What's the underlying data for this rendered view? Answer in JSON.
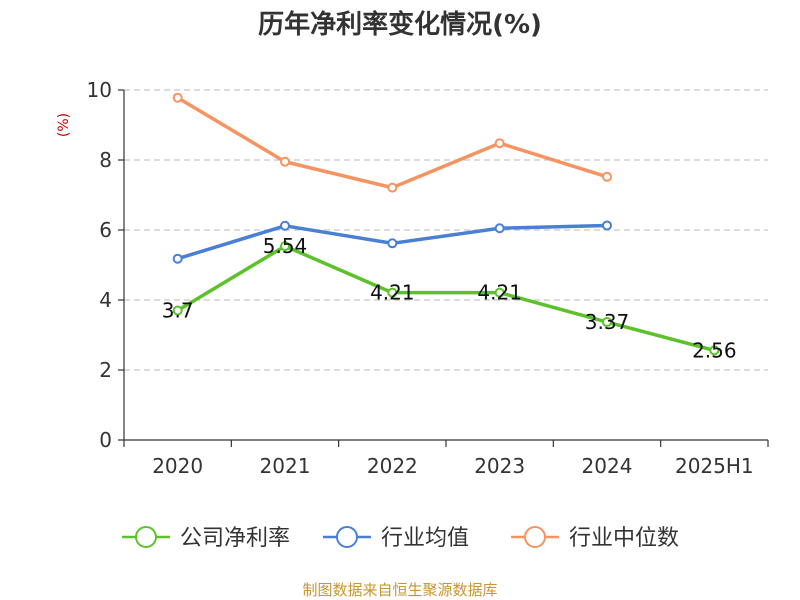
{
  "chart_data": {
    "type": "line",
    "title": "历年净利率变化情况(%)",
    "ylabel": "(%)",
    "categories": [
      "2020",
      "2021",
      "2022",
      "2023",
      "2024",
      "2025H1"
    ],
    "ylim": [
      0,
      10
    ],
    "yticks": [
      "0",
      "2",
      "4",
      "6",
      "8",
      "10"
    ],
    "grid": true,
    "legend_position": "bottom",
    "series": [
      {
        "name": "公司净利率",
        "color": "#5cc12a",
        "values": [
          3.7,
          5.54,
          4.21,
          4.21,
          3.37,
          2.56
        ],
        "labels": [
          "3.7",
          "5.54",
          "4.21",
          "4.21",
          "3.37",
          "2.56"
        ]
      },
      {
        "name": "行业均值",
        "color": "#4a7fd6",
        "values": [
          5.18,
          6.12,
          5.62,
          6.05,
          6.13,
          null
        ]
      },
      {
        "name": "行业中位数",
        "color": "#f59361",
        "values": [
          9.78,
          7.95,
          7.21,
          8.48,
          7.52,
          null
        ]
      }
    ],
    "source": "制图数据来自恒生聚源数据库"
  }
}
